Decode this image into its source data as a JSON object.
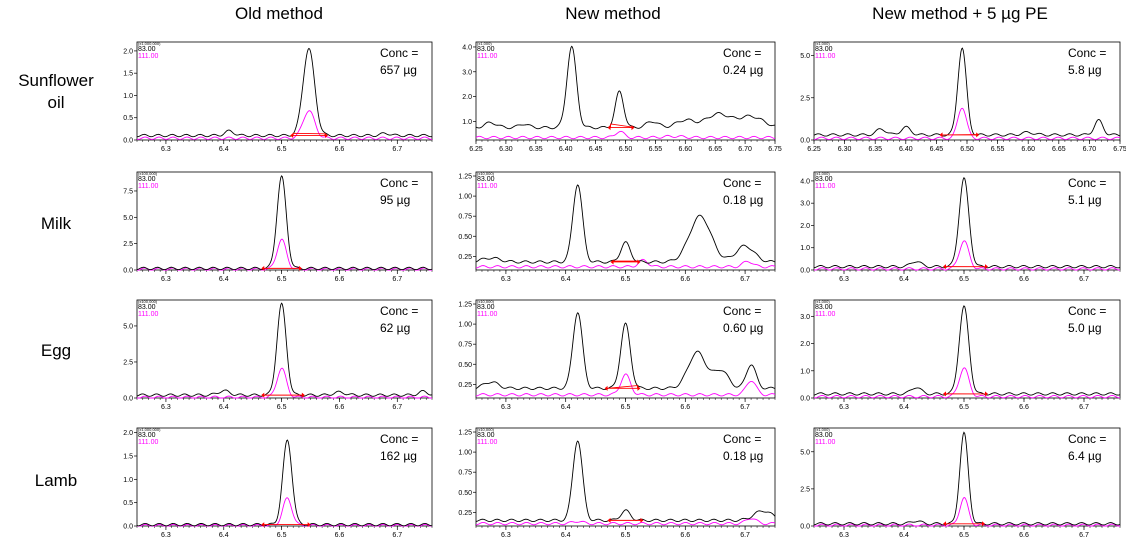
{
  "column_titles": [
    "Old method",
    "New method",
    "New method + 5 µg PE"
  ],
  "row_labels": [
    [
      "Sunflower",
      "oil"
    ],
    [
      "Milk"
    ],
    [
      "Egg"
    ],
    [
      "Lamb"
    ]
  ],
  "colors": {
    "ion_83": "#000000",
    "ion_111": "#ff00ff",
    "integration": "#ff0000"
  },
  "chart_data": [
    {
      "id": "sunflower-old",
      "type": "line",
      "row": 0,
      "col": 0,
      "ion_labels": [
        "83.00",
        "111.00"
      ],
      "multiplier_label": "(x1,000,000)",
      "xlim": [
        6.25,
        6.76
      ],
      "xticks": [
        "6.3",
        "6.4",
        "6.5",
        "6.6",
        "6.7"
      ],
      "ylim": [
        0,
        2.2
      ],
      "yticks": [
        "0.0",
        "0.5",
        "1.0",
        "1.5",
        "2.0"
      ],
      "conc_label": [
        "Conc =",
        "657 µg"
      ],
      "baseline_83": 0.1,
      "baseline_111": 0.04,
      "peaks_83": [
        [
          6.41,
          0.1,
          0.008
        ],
        [
          6.547,
          1.95,
          0.01
        ],
        [
          6.68,
          0.05,
          0.008
        ]
      ],
      "peaks_111": [
        [
          6.547,
          0.62,
          0.01
        ]
      ],
      "integration": [
        6.52,
        6.575
      ]
    },
    {
      "id": "sunflower-new",
      "type": "line",
      "row": 0,
      "col": 1,
      "ion_labels": [
        "83.00",
        "111.00"
      ],
      "multiplier_label": "(x1,000)",
      "xlim": [
        6.25,
        6.75
      ],
      "xticks": [
        "6.25",
        "6.30",
        "6.35",
        "6.40",
        "6.45",
        "6.50",
        "6.55",
        "6.60",
        "6.65",
        "6.70",
        "6.75"
      ],
      "ylim": [
        0.25,
        4.2
      ],
      "yticks": [
        "1.0",
        "2.0",
        "3.0",
        "4.0"
      ],
      "conc_label": [
        "Conc =",
        "0.24 µg"
      ],
      "baseline_83": 0.75,
      "baseline_111": 0.35,
      "peaks_83": [
        [
          6.275,
          0.2,
          0.01
        ],
        [
          6.33,
          0.15,
          0.008
        ],
        [
          6.41,
          3.25,
          0.008
        ],
        [
          6.49,
          1.45,
          0.007
        ],
        [
          6.545,
          0.25,
          0.01
        ],
        [
          6.6,
          0.3,
          0.015
        ],
        [
          6.655,
          0.55,
          0.02
        ],
        [
          6.71,
          0.45,
          0.02
        ]
      ],
      "peaks_111": [
        [
          6.49,
          0.25,
          0.007
        ],
        [
          6.58,
          0.05,
          0.015
        ]
      ],
      "integration": [
        6.475,
        6.51
      ]
    },
    {
      "id": "sunflower-pe",
      "type": "line",
      "row": 0,
      "col": 2,
      "ion_labels": [
        "83.00",
        "111.00"
      ],
      "multiplier_label": "(x1,000)",
      "xlim": [
        6.25,
        6.75
      ],
      "xticks": [
        "6.25",
        "6.30",
        "6.35",
        "6.40",
        "6.45",
        "6.50",
        "6.55",
        "6.60",
        "6.65",
        "6.70",
        "6.75"
      ],
      "ylim": [
        0,
        5.8
      ],
      "yticks": [
        "0.0",
        "2.5",
        "5.0"
      ],
      "conc_label": [
        "Conc =",
        "5.8 µg"
      ],
      "baseline_83": 0.3,
      "baseline_111": 0.1,
      "peaks_83": [
        [
          6.36,
          0.35,
          0.008
        ],
        [
          6.4,
          0.45,
          0.008
        ],
        [
          6.492,
          5.15,
          0.007
        ],
        [
          6.6,
          0.15,
          0.01
        ],
        [
          6.715,
          0.85,
          0.007
        ]
      ],
      "peaks_111": [
        [
          6.492,
          1.85,
          0.007
        ]
      ],
      "integration": [
        6.46,
        6.515
      ]
    },
    {
      "id": "milk-old",
      "type": "line",
      "row": 1,
      "col": 0,
      "ion_labels": [
        "83.00",
        "111.00"
      ],
      "multiplier_label": "(x100,000)",
      "xlim": [
        6.25,
        6.76
      ],
      "xticks": [
        "6.3",
        "6.4",
        "6.5",
        "6.6",
        "6.7"
      ],
      "ylim": [
        0,
        9.3
      ],
      "yticks": [
        "0.0",
        "2.5",
        "5.0",
        "7.5"
      ],
      "conc_label": [
        "Conc =",
        "95 µg"
      ],
      "baseline_83": 0.15,
      "baseline_111": 0.08,
      "peaks_83": [
        [
          6.5,
          8.7,
          0.008
        ]
      ],
      "peaks_111": [
        [
          6.5,
          2.8,
          0.008
        ]
      ],
      "integration": [
        6.47,
        6.53
      ]
    },
    {
      "id": "milk-new",
      "type": "line",
      "row": 1,
      "col": 1,
      "ion_labels": [
        "83.00",
        "111.00"
      ],
      "multiplier_label": "(x10,000)",
      "xlim": [
        6.25,
        6.75
      ],
      "xticks": [
        "6.3",
        "6.4",
        "6.5",
        "6.6",
        "6.7"
      ],
      "ylim": [
        0.08,
        1.3
      ],
      "yticks": [
        "0.25",
        "0.50",
        "0.75",
        "1.00",
        "1.25"
      ],
      "conc_label": [
        "Conc =",
        "0.18 µg"
      ],
      "baseline_83": 0.18,
      "baseline_111": 0.12,
      "peaks_83": [
        [
          6.275,
          0.05,
          0.015
        ],
        [
          6.42,
          0.97,
          0.008
        ],
        [
          6.5,
          0.24,
          0.008
        ],
        [
          6.625,
          0.57,
          0.018
        ],
        [
          6.7,
          0.2,
          0.015
        ]
      ],
      "peaks_111": [
        [
          6.53,
          0.08,
          0.008
        ],
        [
          6.705,
          0.07,
          0.008
        ]
      ],
      "integration": [
        6.48,
        6.52
      ]
    },
    {
      "id": "milk-pe",
      "type": "line",
      "row": 1,
      "col": 2,
      "ion_labels": [
        "83.00",
        "111.00"
      ],
      "multiplier_label": "(x1,000)",
      "xlim": [
        6.25,
        6.76
      ],
      "xticks": [
        "6.3",
        "6.4",
        "6.5",
        "6.6",
        "6.7"
      ],
      "ylim": [
        0,
        4.4
      ],
      "yticks": [
        "0.0",
        "1.0",
        "2.0",
        "3.0",
        "4.0"
      ],
      "conc_label": [
        "Conc =",
        "5.1 µg"
      ],
      "baseline_83": 0.15,
      "baseline_111": 0.05,
      "peaks_83": [
        [
          6.42,
          0.25,
          0.008
        ],
        [
          6.5,
          3.95,
          0.008
        ]
      ],
      "peaks_111": [
        [
          6.5,
          1.25,
          0.008
        ]
      ],
      "integration": [
        6.47,
        6.535
      ]
    },
    {
      "id": "egg-old",
      "type": "line",
      "row": 2,
      "col": 0,
      "ion_labels": [
        "83.00",
        "111.00"
      ],
      "multiplier_label": "(x100,000)",
      "xlim": [
        6.25,
        6.76
      ],
      "xticks": [
        "6.3",
        "6.4",
        "6.5",
        "6.6",
        "6.7"
      ],
      "ylim": [
        0,
        6.8
      ],
      "yticks": [
        "0.0",
        "2.5",
        "5.0"
      ],
      "conc_label": [
        "Conc =",
        "62 µg"
      ],
      "baseline_83": 0.2,
      "baseline_111": 0.05,
      "peaks_83": [
        [
          6.4,
          0.3,
          0.01
        ],
        [
          6.5,
          6.3,
          0.008
        ],
        [
          6.6,
          0.2,
          0.01
        ],
        [
          6.745,
          0.25,
          0.008
        ]
      ],
      "peaks_111": [
        [
          6.5,
          2.0,
          0.008
        ]
      ],
      "integration": [
        6.47,
        6.535
      ]
    },
    {
      "id": "egg-new",
      "type": "line",
      "row": 2,
      "col": 1,
      "ion_labels": [
        "83.00",
        "111.00"
      ],
      "multiplier_label": "(x10,000)",
      "xlim": [
        6.25,
        6.75
      ],
      "xticks": [
        "6.3",
        "6.4",
        "6.5",
        "6.6",
        "6.7"
      ],
      "ylim": [
        0.08,
        1.3
      ],
      "yticks": [
        "0.25",
        "0.50",
        "0.75",
        "1.00",
        "1.25"
      ],
      "conc_label": [
        "Conc =",
        "0.60 µg"
      ],
      "baseline_83": 0.2,
      "baseline_111": 0.12,
      "peaks_83": [
        [
          6.275,
          0.08,
          0.012
        ],
        [
          6.42,
          0.95,
          0.008
        ],
        [
          6.5,
          0.8,
          0.008
        ],
        [
          6.62,
          0.45,
          0.015
        ],
        [
          6.66,
          0.22,
          0.012
        ],
        [
          6.71,
          0.3,
          0.008
        ]
      ],
      "peaks_111": [
        [
          6.5,
          0.25,
          0.008
        ],
        [
          6.71,
          0.18,
          0.008
        ]
      ],
      "integration": [
        6.47,
        6.52
      ]
    },
    {
      "id": "egg-pe",
      "type": "line",
      "row": 2,
      "col": 2,
      "ion_labels": [
        "83.00",
        "111.00"
      ],
      "multiplier_label": "(x1,000)",
      "xlim": [
        6.25,
        6.76
      ],
      "xticks": [
        "6.3",
        "6.4",
        "6.5",
        "6.6",
        "6.7"
      ],
      "ylim": [
        0,
        3.6
      ],
      "yticks": [
        "0.0",
        "1.0",
        "2.0",
        "3.0"
      ],
      "conc_label": [
        "Conc =",
        "5.0 µg"
      ],
      "baseline_83": 0.15,
      "baseline_111": 0.05,
      "peaks_83": [
        [
          6.42,
          0.25,
          0.008
        ],
        [
          6.5,
          3.2,
          0.008
        ]
      ],
      "peaks_111": [
        [
          6.5,
          1.05,
          0.008
        ]
      ],
      "integration": [
        6.47,
        6.535
      ]
    },
    {
      "id": "lamb-old",
      "type": "line",
      "row": 3,
      "col": 0,
      "ion_labels": [
        "83.00",
        "111.00"
      ],
      "multiplier_label": "(x1,000,000)",
      "xlim": [
        6.25,
        6.76
      ],
      "xticks": [
        "6.3",
        "6.4",
        "6.5",
        "6.6",
        "6.7"
      ],
      "ylim": [
        0,
        2.1
      ],
      "yticks": [
        "0.0",
        "0.5",
        "1.0",
        "1.5",
        "2.0"
      ],
      "conc_label": [
        "Conc =",
        "162 µg"
      ],
      "baseline_83": 0.03,
      "baseline_111": 0.01,
      "peaks_83": [
        [
          6.51,
          1.8,
          0.008
        ]
      ],
      "peaks_111": [
        [
          6.51,
          0.58,
          0.008
        ]
      ],
      "integration": [
        6.47,
        6.545
      ]
    },
    {
      "id": "lamb-new",
      "type": "line",
      "row": 3,
      "col": 1,
      "ion_labels": [
        "83.00",
        "111.00"
      ],
      "multiplier_label": "(x10,000)",
      "xlim": [
        6.25,
        6.75
      ],
      "xticks": [
        "6.3",
        "6.4",
        "6.5",
        "6.6",
        "6.7"
      ],
      "ylim": [
        0.08,
        1.3
      ],
      "yticks": [
        "0.25",
        "0.50",
        "0.75",
        "1.00",
        "1.25"
      ],
      "conc_label": [
        "Conc =",
        "0.18 µg"
      ],
      "baseline_83": 0.15,
      "baseline_111": 0.11,
      "peaks_83": [
        [
          6.42,
          1.0,
          0.008
        ],
        [
          6.5,
          0.12,
          0.008
        ],
        [
          6.73,
          0.12,
          0.015
        ]
      ],
      "peaks_111": [
        [
          6.42,
          0.03,
          0.008
        ],
        [
          6.71,
          0.07,
          0.008
        ]
      ],
      "integration": [
        6.475,
        6.525
      ]
    },
    {
      "id": "lamb-pe",
      "type": "line",
      "row": 3,
      "col": 2,
      "ion_labels": [
        "83.00",
        "111.00"
      ],
      "multiplier_label": "(x1,000)",
      "xlim": [
        6.25,
        6.76
      ],
      "xticks": [
        "6.3",
        "6.4",
        "6.5",
        "6.6",
        "6.7"
      ],
      "ylim": [
        0,
        6.6
      ],
      "yticks": [
        "0.0",
        "2.5",
        "5.0"
      ],
      "conc_label": [
        "Conc =",
        "6.4 µg"
      ],
      "baseline_83": 0.15,
      "baseline_111": 0.05,
      "peaks_83": [
        [
          6.42,
          0.2,
          0.008
        ],
        [
          6.5,
          6.1,
          0.007
        ]
      ],
      "peaks_111": [
        [
          6.5,
          1.85,
          0.007
        ]
      ],
      "integration": [
        6.47,
        6.53
      ]
    }
  ]
}
